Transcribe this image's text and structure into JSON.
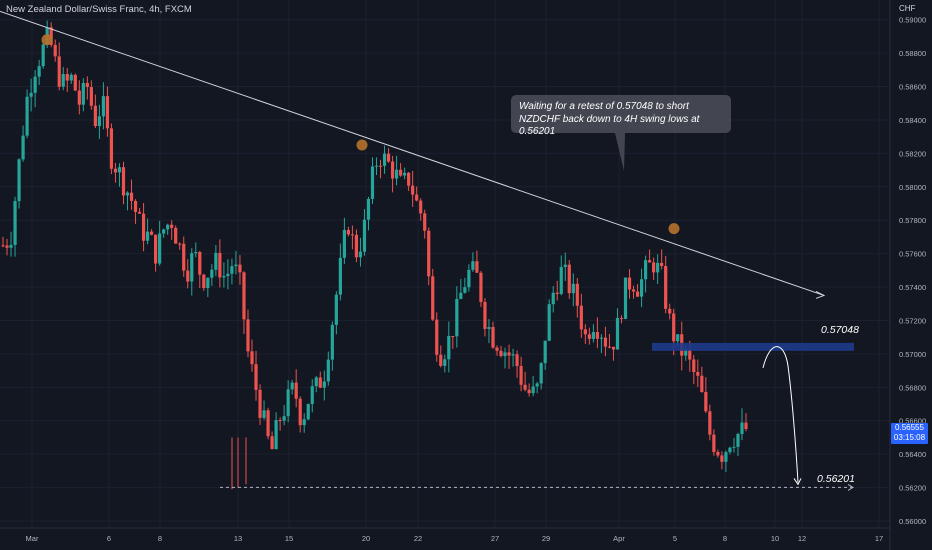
{
  "header": {
    "title": "New Zealand Dollar/Swiss Franc, 4h, FXCM"
  },
  "price_axis": {
    "currency": "CHF",
    "current_price": "0.56555",
    "countdown": "03:15:08"
  },
  "annotation": {
    "note": "Waiting for a retest of 0.57048 to short NZDCHF back down to 4H swing lows at 0.56201",
    "zone_label": "0.57048",
    "target_label": "0.56201"
  },
  "colors": {
    "background": "#131722",
    "bull": "#26a69a",
    "bear": "#ef5350",
    "zone": "#1e3a8a",
    "marker": "#b8722c",
    "trendline": "#d1d4dc",
    "accent": "#2962ff"
  },
  "chart_data": {
    "type": "candlestick",
    "symbol": "NZDCHF",
    "timeframe": "4h",
    "ylim": [
      0.56,
      0.591
    ],
    "y_ticks": [
      "0.59000",
      "0.58800",
      "0.58600",
      "0.58400",
      "0.58200",
      "0.58000",
      "0.57800",
      "0.57600",
      "0.57400",
      "0.57200",
      "0.57000",
      "0.56800",
      "0.56600",
      "0.56400",
      "0.56200",
      "0.56000"
    ],
    "x_ticks": [
      "Mar",
      "6",
      "8",
      "13",
      "15",
      "20",
      "22",
      "27",
      "29",
      "Apr",
      "5",
      "8",
      "10",
      "12",
      "17"
    ],
    "close_path": [
      0.5765,
      0.577,
      0.581,
      0.585,
      0.587,
      0.588,
      0.589,
      0.587,
      0.586,
      0.5865,
      0.585,
      0.586,
      0.584,
      0.585,
      0.582,
      0.581,
      0.58,
      0.579,
      0.5775,
      0.577,
      0.576,
      0.5775,
      0.578,
      0.5765,
      0.575,
      0.576,
      0.5745,
      0.575,
      0.5755,
      0.5745,
      0.5755,
      0.574,
      0.57,
      0.568,
      0.566,
      0.564,
      0.566,
      0.567,
      0.568,
      0.566,
      0.5675,
      0.568,
      0.569,
      0.572,
      0.575,
      0.578,
      0.576,
      0.577,
      0.58,
      0.582,
      0.5815,
      0.581,
      0.58,
      0.5805,
      0.579,
      0.578,
      0.572,
      0.57,
      0.5705,
      0.572,
      0.574,
      0.575,
      0.5745,
      0.572,
      0.571,
      0.5705,
      0.57,
      0.5695,
      0.568,
      0.5675,
      0.568,
      0.572,
      0.574,
      0.575,
      0.574,
      0.573,
      0.571,
      0.572,
      0.5715,
      0.5705,
      0.571,
      0.5735,
      0.5745,
      0.574,
      0.575,
      0.5755,
      0.5745,
      0.572,
      0.5705,
      0.57,
      0.569,
      0.568,
      0.5655,
      0.5645,
      0.564,
      0.565,
      0.5652,
      0.5655
    ],
    "range": {
      "high": 0.589,
      "low": 0.562
    },
    "swing_high_markers": [
      {
        "date": "Mar 2",
        "price": 0.5888
      },
      {
        "date": "Mar 19",
        "price": 0.5825
      },
      {
        "date": "Apr 4",
        "price": 0.5775
      }
    ],
    "trendline": {
      "start": 0.5905,
      "end": 0.5735
    },
    "resistance_zone": {
      "price": 0.57048,
      "label": "0.57048"
    },
    "target_level": {
      "price": 0.56201,
      "label": "0.56201"
    }
  }
}
